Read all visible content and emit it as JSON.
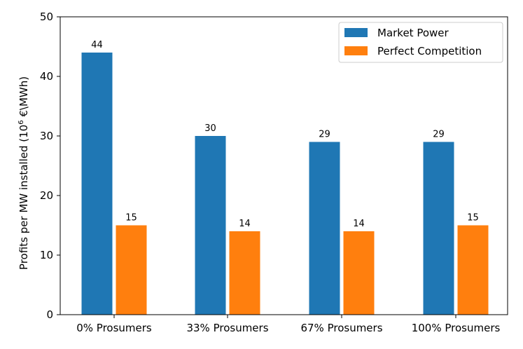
{
  "chart_data": {
    "type": "bar",
    "title": "",
    "xlabel": "",
    "ylabel_main": "Profits per MW installed (10",
    "ylabel_sup": "6",
    "ylabel_tail": " €\\MWh)",
    "ylim": [
      0,
      50
    ],
    "yticks": [
      0,
      10,
      20,
      30,
      40,
      50
    ],
    "categories": [
      "0% Prosumers",
      "33% Prosumers",
      "67% Prosumers",
      "100% Prosumers"
    ],
    "series": [
      {
        "name": "Market Power",
        "color": "#1f77b4",
        "values": [
          44,
          30,
          29,
          29
        ]
      },
      {
        "name": "Perfect Competition",
        "color": "#ff7f0e",
        "values": [
          15,
          14,
          14,
          15
        ]
      }
    ],
    "legend_position": "top-right",
    "grid": false
  }
}
